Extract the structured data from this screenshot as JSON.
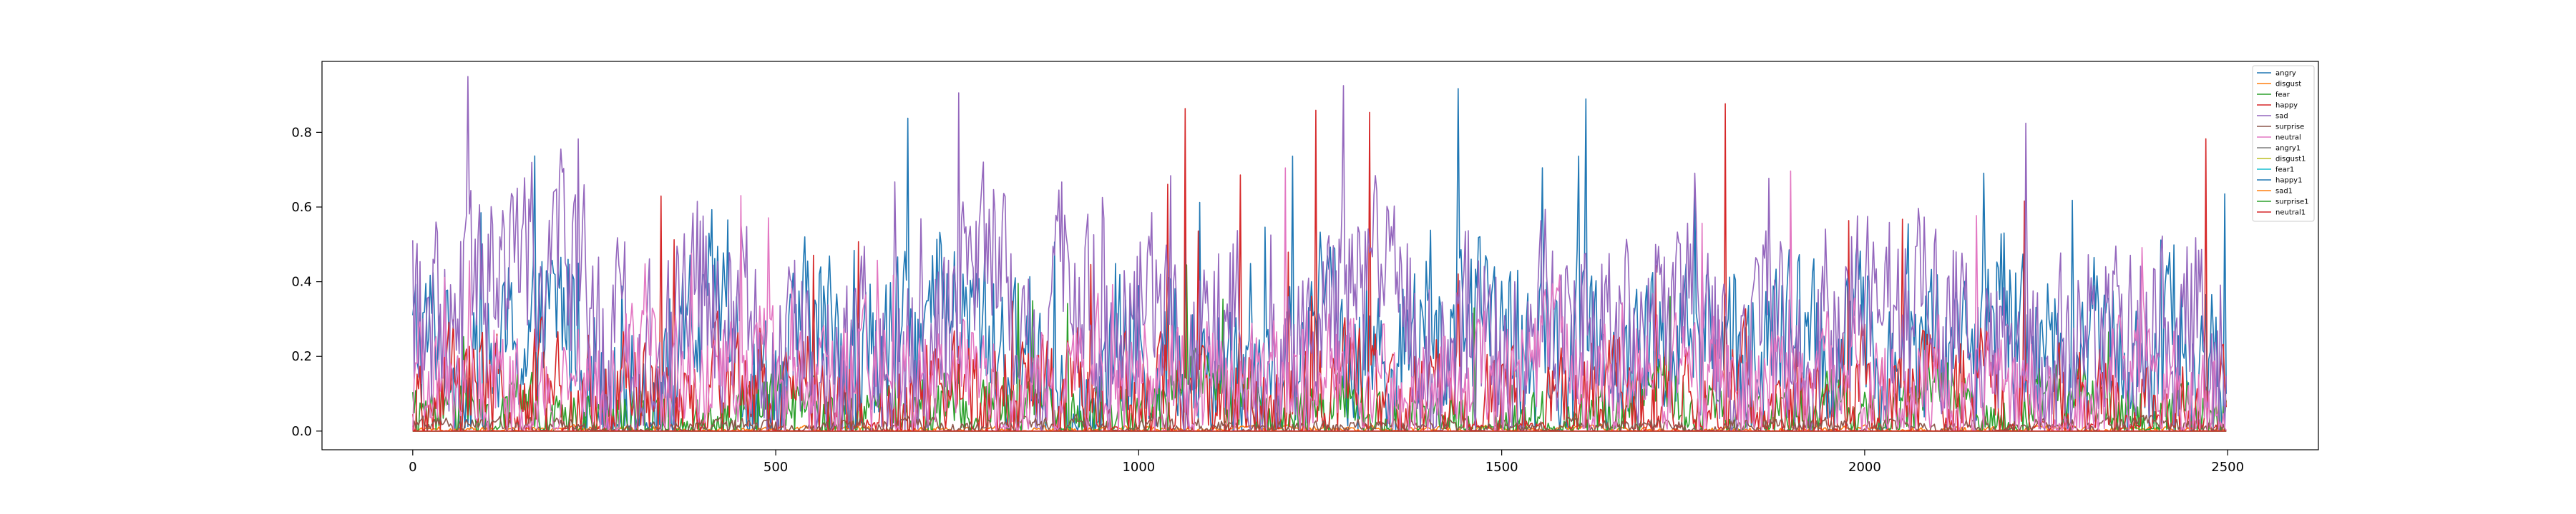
{
  "chart_data": {
    "type": "line",
    "title": "",
    "xlabel": "",
    "ylabel": "",
    "xlim": [
      -125,
      2625
    ],
    "ylim": [
      -0.05,
      0.99
    ],
    "x_ticks": [
      0,
      500,
      1000,
      1500,
      2000,
      2500
    ],
    "x_tick_labels": [
      "0",
      "500",
      "1000",
      "1500",
      "2000",
      "2500"
    ],
    "y_ticks": [
      0.0,
      0.2,
      0.4,
      0.6,
      0.8
    ],
    "y_tick_labels": [
      "0.0",
      "0.2",
      "0.4",
      "0.6",
      "0.8"
    ],
    "n_points": 2500,
    "grid": false,
    "legend_position": "upper right",
    "series": [
      {
        "name": "angry",
        "color": "#1f77b4"
      },
      {
        "name": "disgust",
        "color": "#ff7f0e"
      },
      {
        "name": "fear",
        "color": "#2ca02c"
      },
      {
        "name": "happy",
        "color": "#d62728"
      },
      {
        "name": "sad",
        "color": "#9467bd"
      },
      {
        "name": "surprise",
        "color": "#8c564b"
      },
      {
        "name": "neutral",
        "color": "#e377c2"
      },
      {
        "name": "angry1",
        "color": "#7f7f7f"
      },
      {
        "name": "disgust1",
        "color": "#bcbd22"
      },
      {
        "name": "fear1",
        "color": "#17becf"
      },
      {
        "name": "happy1",
        "color": "#1f77b4"
      },
      {
        "name": "sad1",
        "color": "#ff7f0e"
      },
      {
        "name": "surprise1",
        "color": "#2ca02c"
      },
      {
        "name": "neutral1",
        "color": "#d62728"
      }
    ]
  }
}
